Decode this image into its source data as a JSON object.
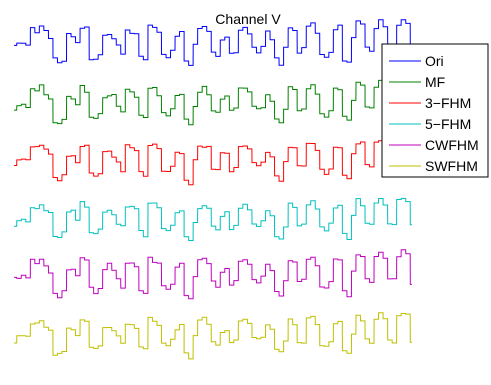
{
  "chart_data": {
    "type": "line",
    "title": "Channel V",
    "xlabel": "",
    "ylabel": "",
    "grid": false,
    "axes_visible": false,
    "legend_position": "top-right",
    "x_points": 200,
    "series": [
      {
        "name": "Ori",
        "color": "#0000ff",
        "offset": 5,
        "values": [
          0.55,
          0.6,
          0.65,
          0.6,
          0.85,
          0.8,
          0.9,
          0.8,
          0.7,
          0.35,
          0.3,
          0.35,
          0.75,
          0.7,
          0.6,
          0.9,
          0.85,
          0.4,
          0.35,
          0.4,
          0.75,
          0.8,
          0.7,
          0.6,
          0.45,
          0.85,
          0.8,
          0.75,
          0.4,
          0.35,
          0.9,
          0.85,
          0.8,
          0.45,
          0.4,
          0.5,
          0.75,
          0.8,
          0.3,
          0.25,
          0.6,
          0.85,
          0.9,
          0.8,
          0.5,
          0.45,
          0.7,
          0.75,
          0.45,
          0.5,
          0.85,
          0.9,
          0.8,
          0.55,
          0.5,
          0.6,
          0.8,
          0.7,
          0.35,
          0.3,
          0.55,
          0.9,
          0.85,
          0.5,
          0.55,
          0.9,
          0.95,
          0.8,
          0.45,
          0.4,
          0.5,
          0.85,
          0.9,
          0.35,
          0.3,
          0.7,
          0.95,
          0.9,
          0.55,
          0.5,
          0.9,
          1.0,
          0.9,
          0.6,
          0.55,
          0.95,
          1.0,
          0.95,
          0.5
        ]
      },
      {
        "name": "MF",
        "color": "#008000",
        "offset": 4,
        "values": [
          0.5,
          0.55,
          0.6,
          0.55,
          0.8,
          0.8,
          0.85,
          0.75,
          0.65,
          0.3,
          0.3,
          0.35,
          0.7,
          0.7,
          0.55,
          0.85,
          0.8,
          0.4,
          0.35,
          0.4,
          0.7,
          0.75,
          0.7,
          0.55,
          0.45,
          0.8,
          0.8,
          0.7,
          0.4,
          0.35,
          0.85,
          0.85,
          0.75,
          0.45,
          0.4,
          0.5,
          0.7,
          0.75,
          0.3,
          0.25,
          0.55,
          0.8,
          0.85,
          0.75,
          0.5,
          0.45,
          0.65,
          0.7,
          0.45,
          0.5,
          0.8,
          0.85,
          0.75,
          0.55,
          0.5,
          0.55,
          0.75,
          0.65,
          0.35,
          0.3,
          0.5,
          0.85,
          0.8,
          0.5,
          0.5,
          0.85,
          0.9,
          0.75,
          0.45,
          0.4,
          0.5,
          0.8,
          0.85,
          0.35,
          0.3,
          0.65,
          0.9,
          0.85,
          0.55,
          0.5,
          0.85,
          0.95,
          0.85,
          0.55,
          0.5,
          0.9,
          0.95,
          0.9,
          0.5
        ]
      },
      {
        "name": "3−FHM",
        "color": "#ff0000",
        "offset": 3,
        "values": [
          0.55,
          0.6,
          0.6,
          0.6,
          0.85,
          0.8,
          0.85,
          0.8,
          0.7,
          0.35,
          0.3,
          0.35,
          0.7,
          0.7,
          0.6,
          0.85,
          0.85,
          0.4,
          0.35,
          0.4,
          0.75,
          0.75,
          0.7,
          0.6,
          0.45,
          0.85,
          0.8,
          0.75,
          0.4,
          0.35,
          0.85,
          0.85,
          0.8,
          0.45,
          0.4,
          0.5,
          0.75,
          0.75,
          0.3,
          0.25,
          0.6,
          0.85,
          0.85,
          0.8,
          0.5,
          0.45,
          0.7,
          0.7,
          0.45,
          0.5,
          0.85,
          0.85,
          0.8,
          0.55,
          0.5,
          0.6,
          0.75,
          0.7,
          0.35,
          0.3,
          0.55,
          0.85,
          0.85,
          0.5,
          0.55,
          0.85,
          0.9,
          0.8,
          0.45,
          0.4,
          0.5,
          0.85,
          0.85,
          0.35,
          0.3,
          0.7,
          0.9,
          0.9,
          0.55,
          0.5,
          0.9,
          0.95,
          0.9,
          0.6,
          0.55,
          0.9,
          0.95,
          0.9,
          0.5
        ]
      },
      {
        "name": "5−FHM",
        "color": "#00bfbf",
        "offset": 2,
        "values": [
          0.5,
          0.55,
          0.6,
          0.55,
          0.8,
          0.8,
          0.85,
          0.75,
          0.7,
          0.35,
          0.3,
          0.35,
          0.7,
          0.7,
          0.55,
          0.85,
          0.8,
          0.4,
          0.35,
          0.4,
          0.7,
          0.75,
          0.7,
          0.55,
          0.45,
          0.8,
          0.8,
          0.75,
          0.4,
          0.35,
          0.85,
          0.85,
          0.75,
          0.45,
          0.4,
          0.5,
          0.7,
          0.75,
          0.3,
          0.25,
          0.55,
          0.8,
          0.85,
          0.75,
          0.5,
          0.45,
          0.65,
          0.7,
          0.45,
          0.5,
          0.8,
          0.85,
          0.75,
          0.55,
          0.5,
          0.55,
          0.75,
          0.65,
          0.35,
          0.3,
          0.5,
          0.85,
          0.8,
          0.5,
          0.5,
          0.85,
          0.9,
          0.75,
          0.45,
          0.4,
          0.5,
          0.8,
          0.85,
          0.35,
          0.3,
          0.65,
          0.9,
          0.85,
          0.55,
          0.5,
          0.85,
          0.95,
          0.85,
          0.55,
          0.5,
          0.9,
          0.95,
          0.9,
          0.5
        ]
      },
      {
        "name": "CWFHM",
        "color": "#bf00bf",
        "offset": 1,
        "values": [
          0.55,
          0.6,
          0.65,
          0.6,
          0.85,
          0.8,
          0.9,
          0.8,
          0.7,
          0.35,
          0.3,
          0.35,
          0.75,
          0.7,
          0.6,
          0.9,
          0.85,
          0.4,
          0.35,
          0.4,
          0.75,
          0.8,
          0.7,
          0.6,
          0.45,
          0.85,
          0.8,
          0.75,
          0.4,
          0.35,
          0.9,
          0.85,
          0.8,
          0.45,
          0.4,
          0.5,
          0.75,
          0.8,
          0.3,
          0.25,
          0.6,
          0.85,
          0.9,
          0.8,
          0.5,
          0.45,
          0.7,
          0.75,
          0.45,
          0.5,
          0.85,
          0.9,
          0.8,
          0.55,
          0.5,
          0.6,
          0.8,
          0.7,
          0.35,
          0.3,
          0.55,
          0.9,
          0.85,
          0.5,
          0.55,
          0.9,
          0.95,
          0.8,
          0.45,
          0.4,
          0.5,
          0.85,
          0.9,
          0.35,
          0.3,
          0.7,
          0.95,
          0.9,
          0.55,
          0.5,
          0.9,
          1.0,
          0.9,
          0.6,
          0.55,
          0.95,
          1.0,
          0.95,
          0.5
        ]
      },
      {
        "name": "SWFHM",
        "color": "#bfbf00",
        "offset": 0,
        "values": [
          0.5,
          0.55,
          0.6,
          0.55,
          0.8,
          0.8,
          0.85,
          0.75,
          0.65,
          0.3,
          0.3,
          0.35,
          0.7,
          0.7,
          0.55,
          0.85,
          0.8,
          0.4,
          0.35,
          0.4,
          0.7,
          0.75,
          0.7,
          0.55,
          0.45,
          0.8,
          0.8,
          0.7,
          0.4,
          0.35,
          0.85,
          0.85,
          0.75,
          0.45,
          0.4,
          0.5,
          0.7,
          0.75,
          0.3,
          0.25,
          0.55,
          0.8,
          0.85,
          0.75,
          0.5,
          0.45,
          0.65,
          0.7,
          0.45,
          0.5,
          0.8,
          0.85,
          0.75,
          0.55,
          0.5,
          0.55,
          0.75,
          0.65,
          0.35,
          0.3,
          0.5,
          0.85,
          0.8,
          0.5,
          0.5,
          0.85,
          0.9,
          0.75,
          0.45,
          0.4,
          0.5,
          0.8,
          0.85,
          0.35,
          0.3,
          0.65,
          0.9,
          0.85,
          0.55,
          0.5,
          0.85,
          0.95,
          0.85,
          0.55,
          0.5,
          0.9,
          0.95,
          0.9,
          0.5
        ]
      }
    ]
  }
}
